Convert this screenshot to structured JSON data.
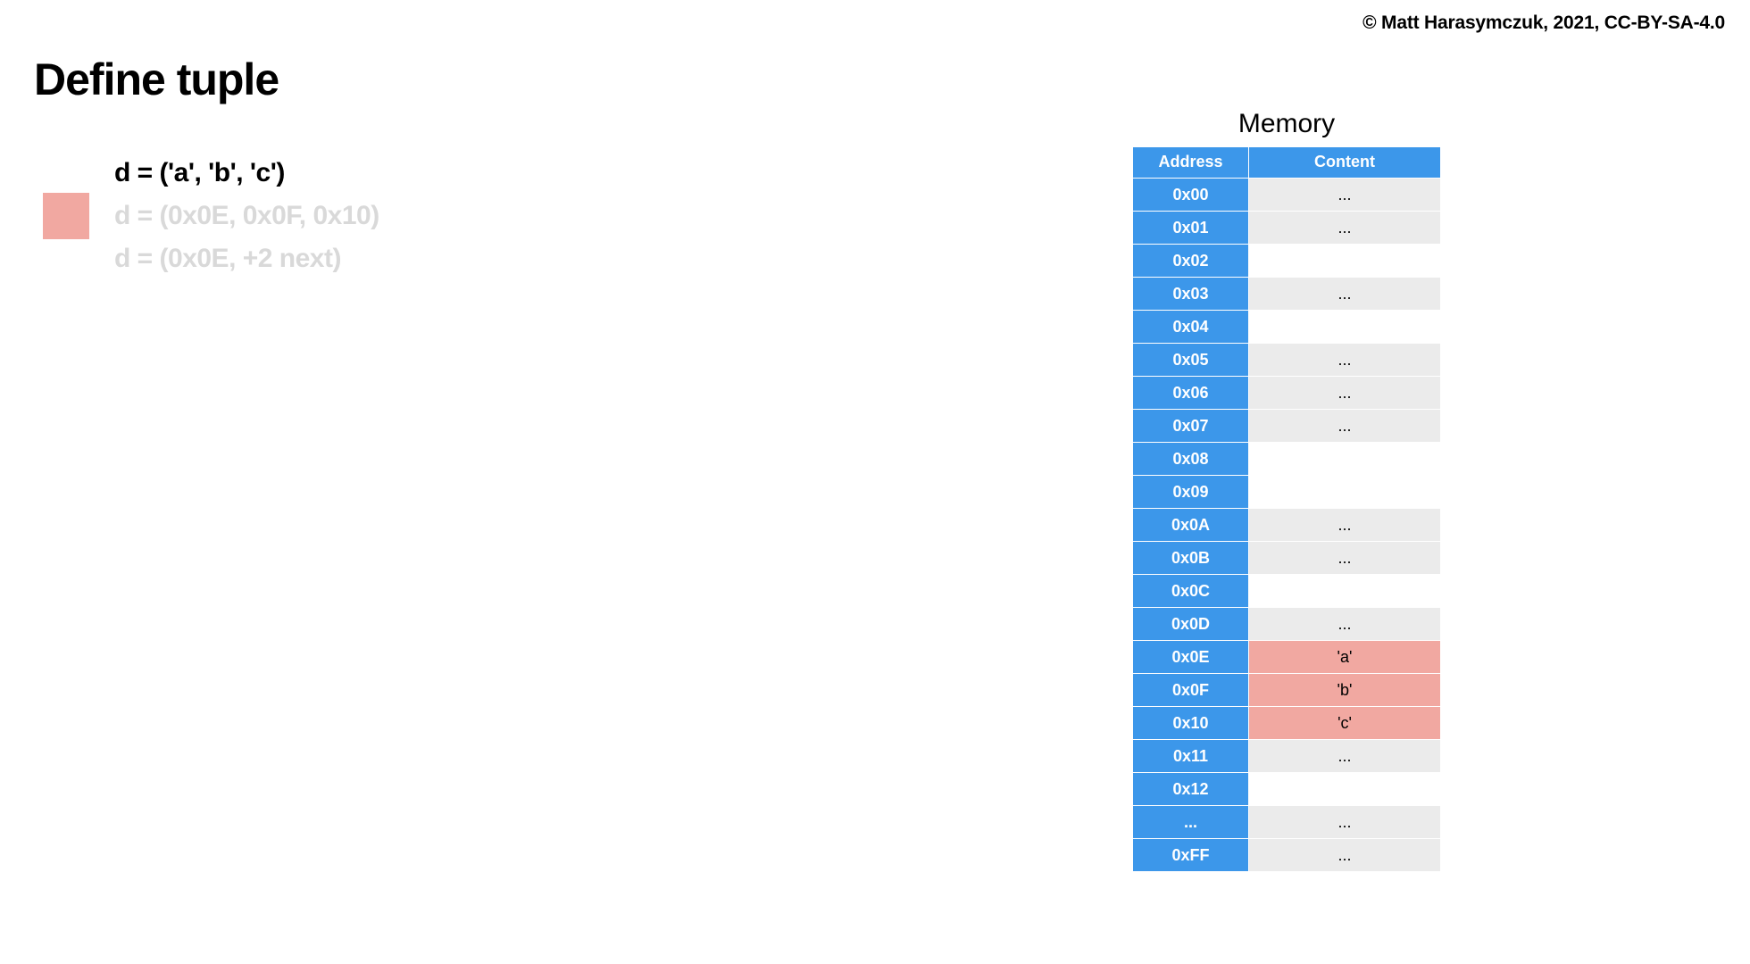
{
  "copyright": "© Matt Harasymczuk, 2021, CC-BY-SA-4.0",
  "title": "Define tuple",
  "colors": {
    "highlight": "#f1a8a1",
    "header_bg": "#3c97ea",
    "header_fg": "#ffffff",
    "row_alt_bg": "#ebebeb",
    "row_bg": "#ffffff",
    "dim_text": "#d9d9d9",
    "text": "#000000"
  },
  "code": {
    "swatch_color": "#f1a8a1",
    "lines": [
      {
        "text": "d = ('a', 'b', 'c')",
        "dim": false
      },
      {
        "text": "d = (0x0E, 0x0F, 0x10)",
        "dim": true
      },
      {
        "text": "d = (0x0E, +2 next)",
        "dim": true
      }
    ]
  },
  "memory": {
    "title": "Memory",
    "columns": [
      "Address",
      "Content"
    ],
    "rows": [
      {
        "address": "0x00",
        "content": "...",
        "content_bg": "#ebebeb"
      },
      {
        "address": "0x01",
        "content": "...",
        "content_bg": "#ebebeb"
      },
      {
        "address": "0x02",
        "content": "",
        "content_bg": "#ffffff"
      },
      {
        "address": "0x03",
        "content": "...",
        "content_bg": "#ebebeb"
      },
      {
        "address": "0x04",
        "content": "",
        "content_bg": "#ffffff"
      },
      {
        "address": "0x05",
        "content": "...",
        "content_bg": "#ebebeb"
      },
      {
        "address": "0x06",
        "content": "...",
        "content_bg": "#ebebeb"
      },
      {
        "address": "0x07",
        "content": "...",
        "content_bg": "#ebebeb"
      },
      {
        "address": "0x08",
        "content": "",
        "content_bg": "#ffffff"
      },
      {
        "address": "0x09",
        "content": "",
        "content_bg": "#ffffff"
      },
      {
        "address": "0x0A",
        "content": "...",
        "content_bg": "#ebebeb"
      },
      {
        "address": "0x0B",
        "content": "...",
        "content_bg": "#ebebeb"
      },
      {
        "address": "0x0C",
        "content": "",
        "content_bg": "#ffffff"
      },
      {
        "address": "0x0D",
        "content": "...",
        "content_bg": "#ebebeb"
      },
      {
        "address": "0x0E",
        "content": "'a'",
        "content_bg": "#f1a8a1"
      },
      {
        "address": "0x0F",
        "content": "'b'",
        "content_bg": "#f1a8a1"
      },
      {
        "address": "0x10",
        "content": "'c'",
        "content_bg": "#f1a8a1"
      },
      {
        "address": "0x11",
        "content": "...",
        "content_bg": "#ebebeb"
      },
      {
        "address": "0x12",
        "content": "",
        "content_bg": "#ffffff"
      },
      {
        "address": "...",
        "content": "...",
        "content_bg": "#ebebeb"
      },
      {
        "address": "0xFF",
        "content": "...",
        "content_bg": "#ebebeb"
      }
    ]
  }
}
